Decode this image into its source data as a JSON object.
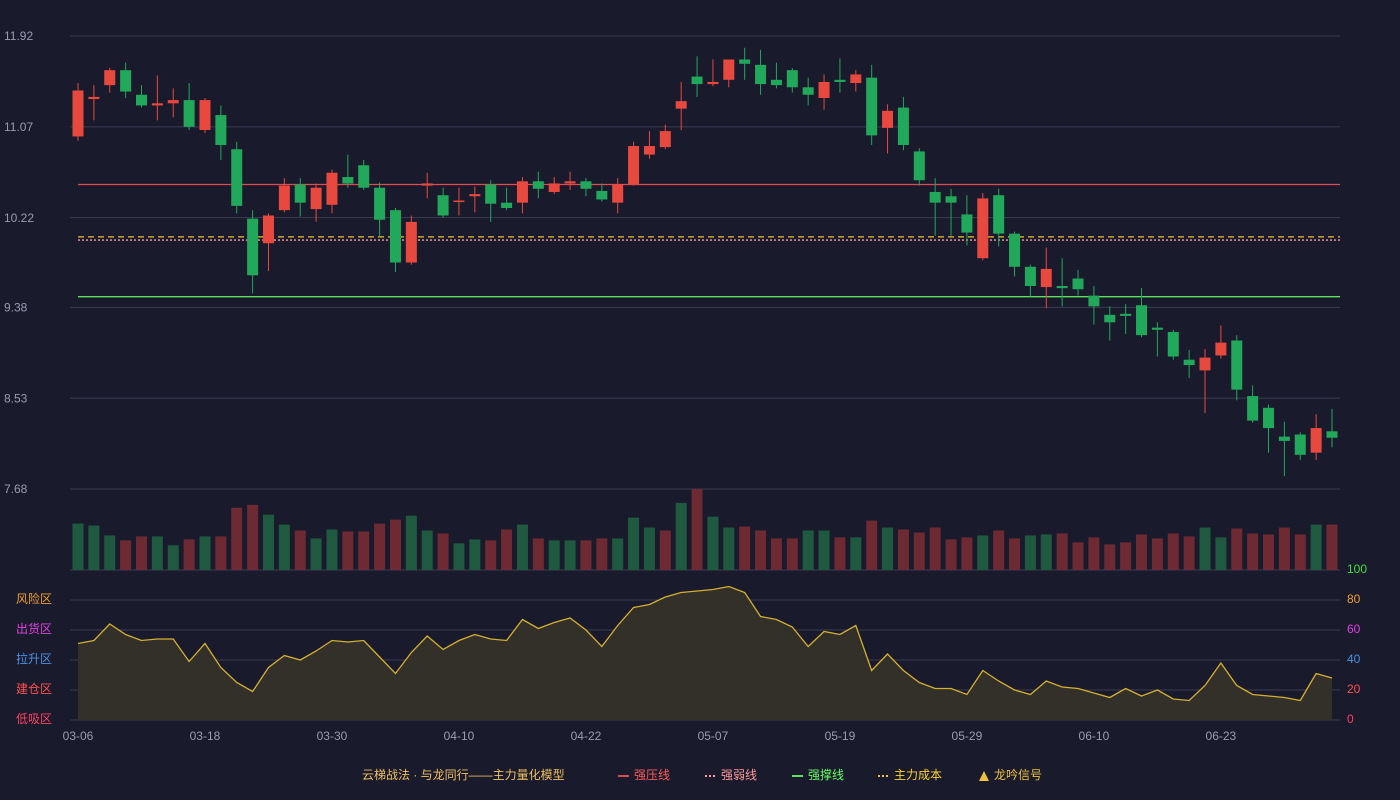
{
  "chart_data": [
    {
      "type": "candlestick",
      "categories": [
        "03-06",
        null,
        null,
        null,
        null,
        null,
        null,
        null,
        "03-18",
        null,
        null,
        null,
        null,
        null,
        null,
        null,
        "03-30",
        null,
        null,
        null,
        null,
        null,
        null,
        null,
        "04-10",
        null,
        null,
        null,
        null,
        null,
        null,
        null,
        "04-22",
        null,
        null,
        null,
        null,
        null,
        null,
        null,
        "05-07",
        null,
        null,
        null,
        null,
        null,
        null,
        null,
        "05-19",
        null,
        null,
        null,
        null,
        null,
        null,
        null,
        "05-29",
        null,
        null,
        null,
        null,
        null,
        null,
        null,
        "06-10",
        null,
        null,
        null,
        null,
        null,
        null,
        null,
        "06-23",
        null,
        null,
        null,
        null,
        null,
        null,
        null
      ],
      "open": [
        10.98,
        11.33,
        11.46,
        11.6,
        11.37,
        11.27,
        11.29,
        11.32,
        11.04,
        11.18,
        10.86,
        10.21,
        9.98,
        10.29,
        10.53,
        10.3,
        10.34,
        10.6,
        10.71,
        10.5,
        10.29,
        9.8,
        10.52,
        10.43,
        10.37,
        10.42,
        10.53,
        10.36,
        10.36,
        10.56,
        10.46,
        10.54,
        10.56,
        10.47,
        10.36,
        10.53,
        10.81,
        10.88,
        11.24,
        11.54,
        11.47,
        11.51,
        11.7,
        11.65,
        11.51,
        11.6,
        11.44,
        11.34,
        11.51,
        11.48,
        11.53,
        11.06,
        11.25,
        10.84,
        10.46,
        10.42,
        10.25,
        9.84,
        10.43,
        10.07,
        9.76,
        9.57,
        9.58,
        9.65,
        9.49,
        9.31,
        9.32,
        9.4,
        9.19,
        9.15,
        8.89,
        8.79,
        8.93,
        9.07,
        8.55,
        8.44,
        8.17,
        8.19,
        8.02,
        8.22
      ],
      "close": [
        11.41,
        11.35,
        11.6,
        11.4,
        11.27,
        11.29,
        11.32,
        11.07,
        11.32,
        10.9,
        10.33,
        9.68,
        10.24,
        10.52,
        10.36,
        10.5,
        10.64,
        10.54,
        10.5,
        10.2,
        9.8,
        10.18,
        10.54,
        10.24,
        10.38,
        10.44,
        10.35,
        10.31,
        10.56,
        10.49,
        10.54,
        10.56,
        10.49,
        10.39,
        10.53,
        10.89,
        10.89,
        11.03,
        11.31,
        11.47,
        11.49,
        11.7,
        11.66,
        11.47,
        11.46,
        11.44,
        11.37,
        11.49,
        11.49,
        11.56,
        10.99,
        11.22,
        10.9,
        10.57,
        10.36,
        10.36,
        10.08,
        10.4,
        10.07,
        9.76,
        9.58,
        9.74,
        9.56,
        9.55,
        9.39,
        9.24,
        9.3,
        9.12,
        9.17,
        8.92,
        8.84,
        8.91,
        9.05,
        8.61,
        8.32,
        8.25,
        8.13,
        8.0,
        8.25,
        8.16
      ],
      "high": [
        11.48,
        11.46,
        11.62,
        11.67,
        11.46,
        11.55,
        11.43,
        11.48,
        11.34,
        11.27,
        10.93,
        10.29,
        10.26,
        10.59,
        10.59,
        10.54,
        10.67,
        10.81,
        10.76,
        10.55,
        10.31,
        10.24,
        10.64,
        10.5,
        10.5,
        10.51,
        10.57,
        10.5,
        10.6,
        10.65,
        10.6,
        10.65,
        10.59,
        10.54,
        10.59,
        10.93,
        11.03,
        11.09,
        11.49,
        11.73,
        11.7,
        11.7,
        11.81,
        11.79,
        11.67,
        11.62,
        11.53,
        11.56,
        11.71,
        11.6,
        11.65,
        11.28,
        11.35,
        10.87,
        10.59,
        10.49,
        10.43,
        10.45,
        10.49,
        10.09,
        9.78,
        9.94,
        9.84,
        9.73,
        9.58,
        9.39,
        9.41,
        9.56,
        9.24,
        9.17,
        8.98,
        8.99,
        9.21,
        9.12,
        8.65,
        8.47,
        8.31,
        8.21,
        8.38,
        8.43
      ],
      "low": [
        10.94,
        11.13,
        11.39,
        11.34,
        11.25,
        11.13,
        11.16,
        11.04,
        11.01,
        10.76,
        10.26,
        9.51,
        9.72,
        10.27,
        10.23,
        10.18,
        10.26,
        10.5,
        10.48,
        10.04,
        9.71,
        9.78,
        10.4,
        10.22,
        10.24,
        10.27,
        10.18,
        10.29,
        10.26,
        10.4,
        10.44,
        10.48,
        10.42,
        10.37,
        10.26,
        10.52,
        10.77,
        10.86,
        11.04,
        11.35,
        11.45,
        11.44,
        11.51,
        11.37,
        11.43,
        11.39,
        11.27,
        11.23,
        11.39,
        11.4,
        10.9,
        10.82,
        10.85,
        10.52,
        10.05,
        10.05,
        9.96,
        9.82,
        9.95,
        9.67,
        9.48,
        9.37,
        9.39,
        9.49,
        9.22,
        9.07,
        9.13,
        9.1,
        8.92,
        8.89,
        8.72,
        8.39,
        8.9,
        8.51,
        8.3,
        8.02,
        7.8,
        7.95,
        7.95,
        8.07
      ],
      "up_color": "#e8493f",
      "down_color": "#22a85a",
      "ylim": [
        7.68,
        11.92
      ],
      "yticks": [
        11.92,
        11.07,
        10.22,
        9.38,
        8.53,
        7.68
      ],
      "grid": true,
      "legend_title": "云梯战法 · 与龙同行——主力量化模型",
      "levels": [
        {
          "name": "强压线",
          "value": 10.53,
          "color": "#e04a55",
          "text_color": "#ff5a5a",
          "dash": "none"
        },
        {
          "name": "强弱线",
          "value": 10.01,
          "color": "#ff9aa0",
          "text_color": "#ff9a9a",
          "dash": "2 2"
        },
        {
          "name": "强撑线",
          "value": 9.48,
          "color": "#5ee05e",
          "text_color": "#66ff66",
          "dash": "none"
        },
        {
          "name": "主力成本",
          "value": 10.04,
          "color": "#f0c030",
          "text_color": "#ffd030",
          "dash": "6 4"
        }
      ],
      "signal": {
        "name": "龙吟信号",
        "color": "#f0c040"
      }
    },
    {
      "type": "bar",
      "values": [
        47,
        45,
        35,
        30,
        34,
        34,
        25,
        31,
        34,
        34,
        63,
        66,
        56,
        46,
        40,
        32,
        41,
        39,
        39,
        47,
        51,
        55,
        40,
        37,
        27,
        31,
        30,
        41,
        46,
        32,
        30,
        30,
        30,
        32,
        32,
        53,
        43,
        40,
        68,
        82,
        54,
        43,
        44,
        40,
        32,
        32,
        40,
        40,
        33,
        33,
        50,
        43,
        41,
        38,
        43,
        31,
        33,
        35,
        40,
        32,
        35,
        36,
        37,
        28,
        33,
        26,
        28,
        36,
        32,
        37,
        34,
        43,
        33,
        42,
        37,
        36,
        43,
        36,
        46,
        46
      ],
      "directions": [
        "down",
        "down",
        "down",
        "up",
        "up",
        "down",
        "down",
        "up",
        "down",
        "up",
        "up",
        "up",
        "down",
        "down",
        "up",
        "down",
        "down",
        "up",
        "up",
        "up",
        "up",
        "down",
        "down",
        "up",
        "down",
        "down",
        "up",
        "up",
        "down",
        "up",
        "down",
        "down",
        "up",
        "up",
        "down",
        "down",
        "down",
        "up",
        "down",
        "up",
        "down",
        "down",
        "up",
        "up",
        "up",
        "up",
        "down",
        "down",
        "up",
        "down",
        "up",
        "down",
        "up",
        "up",
        "up",
        "up",
        "up",
        "down",
        "up",
        "up",
        "down",
        "down",
        "up",
        "up",
        "up",
        "up",
        "up",
        "up",
        "up",
        "up",
        "up",
        "down",
        "down",
        "up",
        "up",
        "up",
        "up",
        "up",
        "down",
        "up"
      ],
      "up_color": "#6e2a32",
      "down_color": "#1f5a40",
      "ylim": [
        0,
        82
      ]
    },
    {
      "type": "area",
      "values": [
        51,
        53,
        64,
        57,
        53,
        54,
        54,
        39,
        51,
        35,
        25,
        19,
        35,
        43,
        40,
        46,
        53,
        52,
        53,
        42,
        31,
        45,
        56,
        47,
        53,
        57,
        54,
        53,
        67,
        61,
        65,
        68,
        60,
        49,
        63,
        75,
        77,
        82,
        85,
        86,
        87,
        89,
        85,
        69,
        67,
        62,
        49,
        59,
        57,
        63,
        33,
        44,
        33,
        25,
        21,
        21,
        17,
        33,
        26,
        20,
        17,
        26,
        22,
        21,
        18,
        15,
        21,
        16,
        20,
        14,
        13,
        23,
        38,
        23,
        17,
        16,
        15,
        13,
        31,
        28
      ],
      "color": "#d4b030",
      "fill": "#332f29",
      "ylim": [
        0,
        100
      ],
      "y2ticks": [
        0,
        20,
        40,
        60,
        80,
        100
      ],
      "y2tick_colors": [
        "#ff4060",
        "#ff5050",
        "#4a90e2",
        "#e040e0",
        "#f0a030",
        "#40e040"
      ],
      "zones": [
        {
          "label": "风险区",
          "value": 80,
          "color": "#f0a030"
        },
        {
          "label": "出货区",
          "value": 60,
          "color": "#e040e0"
        },
        {
          "label": "拉升区",
          "value": 40,
          "color": "#4a90e2"
        },
        {
          "label": "建仓区",
          "value": 20,
          "color": "#ff5050"
        },
        {
          "label": "低吸区",
          "value": 0,
          "color": "#ff4060"
        }
      ]
    }
  ]
}
